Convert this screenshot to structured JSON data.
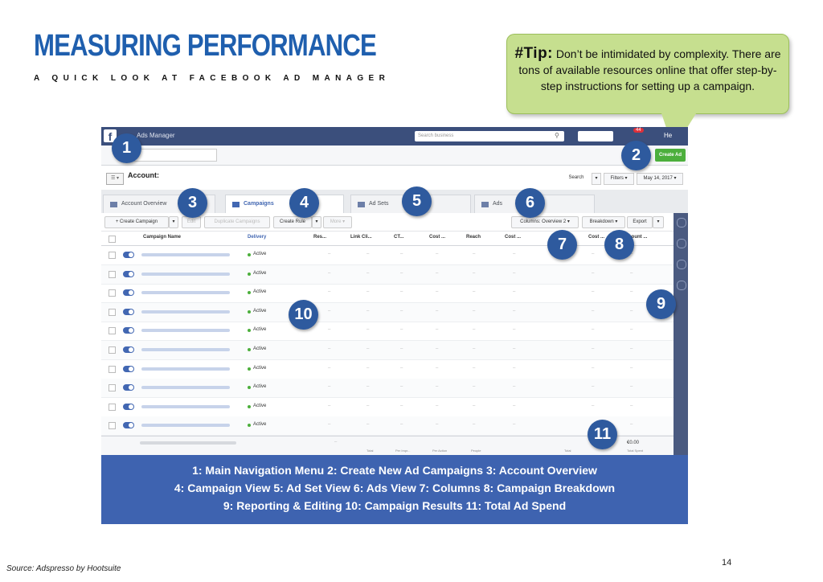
{
  "slide": {
    "title": "MEASURING PERFORMANCE",
    "subtitle": "A QUICK LOOK AT FACEBOOK AD MANAGER",
    "tip_label": "#Tip:",
    "tip_text": " Don’t be intimidated by complexity. There are tons of available resources online that offer step-by-step instructions for setting up a campaign.",
    "page_number": "14",
    "source": "Source: Adspresso by Hootsuite"
  },
  "colors": {
    "title_blue": "#1f5fae",
    "tip_green": "#c6df8f",
    "legend_blue": "#3e63b0",
    "badge_blue": "#2e5a9e",
    "fb_bar": "#3b4f7c"
  },
  "fb": {
    "logo": "f",
    "app_name": "Ads Manager",
    "search_placeholder": "Search business",
    "notif_count": "44",
    "user": "He",
    "create_ad": "Create Ad",
    "account_label": "Account:",
    "search_btn": "Search",
    "filters_btn": "Filters ▾",
    "date_btn": "May 14, 2017 ▾"
  },
  "tabs": [
    "Account Overview",
    "Campaigns",
    "Ad Sets",
    "Ads"
  ],
  "toolbar": {
    "create_campaign": "+ Create Campaign",
    "edit": "Edit",
    "duplicate": "Duplicate Campaigns",
    "create_rule": "Create Rule",
    "more": "More ▾",
    "columns": "Columns: Overview 2 ▾",
    "breakdown": "Breakdown ▾",
    "export": "Export"
  },
  "table": {
    "headers": [
      "Campaign Name",
      "Delivery",
      "Res...",
      "Link Cli...",
      "CT...",
      "Cost ...",
      "Reach",
      "Cost ...",
      "Cost ...",
      "Amount ..."
    ],
    "status": "Active",
    "dash": "–",
    "rows": 10,
    "totals_value": "€0.00",
    "totals_subs": [
      "Total",
      "Per Impr...",
      "Per Action",
      "People",
      "Total",
      "Total Spent"
    ]
  },
  "badges": [
    "1",
    "2",
    "3",
    "4",
    "5",
    "6",
    "7",
    "8",
    "9",
    "10",
    "11"
  ],
  "legend": {
    "line1": "1: Main Navigation Menu  2: Create New Ad Campaigns  3: Account Overview",
    "line2": "4: Campaign View  5: Ad Set View  6: Ads View  7: Columns  8: Campaign Breakdown",
    "line3": "9: Reporting & Editing  10: Campaign Results  11: Total Ad Spend"
  }
}
